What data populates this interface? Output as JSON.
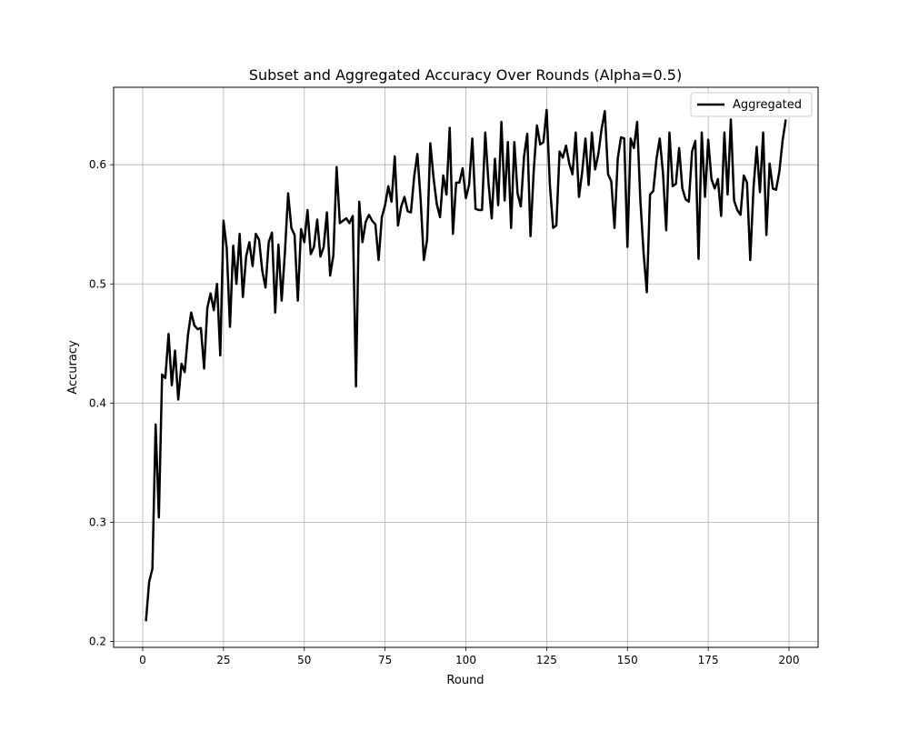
{
  "chart_data": {
    "type": "line",
    "title": "Subset and Aggregated Accuracy Over Rounds (Alpha=0.5)",
    "xlabel": "Round",
    "ylabel": "Accuracy",
    "xlim": [
      -9,
      209
    ],
    "ylim": [
      0.195,
      0.665
    ],
    "x_ticks": [
      0,
      25,
      50,
      75,
      100,
      125,
      150,
      175,
      200
    ],
    "y_ticks": [
      0.2,
      0.3,
      0.4,
      0.5,
      0.6
    ],
    "grid": true,
    "legend_position": "upper right",
    "series": [
      {
        "name": "Aggregated",
        "color": "#000000",
        "x": [
          1,
          2,
          3,
          4,
          5,
          6,
          7,
          8,
          9,
          10,
          11,
          12,
          13,
          14,
          15,
          16,
          17,
          18,
          19,
          20,
          21,
          22,
          23,
          24,
          25,
          26,
          27,
          28,
          29,
          30,
          31,
          32,
          33,
          34,
          35,
          36,
          37,
          38,
          39,
          40,
          41,
          42,
          43,
          44,
          45,
          46,
          47,
          48,
          49,
          50,
          51,
          52,
          53,
          54,
          55,
          56,
          57,
          58,
          59,
          60,
          61,
          62,
          63,
          64,
          65,
          66,
          67,
          68,
          69,
          70,
          71,
          72,
          73,
          74,
          75,
          76,
          77,
          78,
          79,
          80,
          81,
          82,
          83,
          84,
          85,
          86,
          87,
          88,
          89,
          90,
          91,
          92,
          93,
          94,
          95,
          96,
          97,
          98,
          99,
          100,
          101,
          102,
          103,
          104,
          105,
          106,
          107,
          108,
          109,
          110,
          111,
          112,
          113,
          114,
          115,
          116,
          117,
          118,
          119,
          120,
          121,
          122,
          123,
          124,
          125,
          126,
          127,
          128,
          129,
          130,
          131,
          132,
          133,
          134,
          135,
          136,
          137,
          138,
          139,
          140,
          141,
          142,
          143,
          144,
          145,
          146,
          147,
          148,
          149,
          150,
          151,
          152,
          153,
          154,
          155,
          156,
          157,
          158,
          159,
          160,
          161,
          162,
          163,
          164,
          165,
          166,
          167,
          168,
          169,
          170,
          171,
          172,
          173,
          174,
          175,
          176,
          177,
          178,
          179,
          180,
          181,
          182,
          183,
          184,
          185,
          186,
          187,
          188,
          189,
          190,
          191,
          192,
          193,
          194,
          195,
          196,
          197,
          198,
          199
        ],
        "values": [
          0.217,
          0.25,
          0.261,
          0.382,
          0.304,
          0.424,
          0.421,
          0.458,
          0.415,
          0.444,
          0.403,
          0.433,
          0.426,
          0.457,
          0.476,
          0.465,
          0.462,
          0.463,
          0.429,
          0.48,
          0.492,
          0.478,
          0.5,
          0.44,
          0.553,
          0.53,
          0.464,
          0.532,
          0.5,
          0.542,
          0.489,
          0.523,
          0.535,
          0.515,
          0.542,
          0.537,
          0.511,
          0.497,
          0.535,
          0.543,
          0.476,
          0.533,
          0.486,
          0.526,
          0.576,
          0.547,
          0.541,
          0.486,
          0.546,
          0.535,
          0.562,
          0.525,
          0.531,
          0.554,
          0.523,
          0.531,
          0.56,
          0.507,
          0.524,
          0.598,
          0.551,
          0.553,
          0.555,
          0.551,
          0.557,
          0.414,
          0.569,
          0.535,
          0.552,
          0.558,
          0.553,
          0.55,
          0.52,
          0.556,
          0.566,
          0.582,
          0.569,
          0.607,
          0.549,
          0.565,
          0.573,
          0.561,
          0.56,
          0.59,
          0.609,
          0.571,
          0.52,
          0.537,
          0.618,
          0.589,
          0.567,
          0.556,
          0.591,
          0.575,
          0.631,
          0.542,
          0.585,
          0.585,
          0.597,
          0.572,
          0.583,
          0.622,
          0.563,
          0.562,
          0.562,
          0.627,
          0.585,
          0.555,
          0.605,
          0.566,
          0.636,
          0.57,
          0.619,
          0.547,
          0.619,
          0.576,
          0.565,
          0.607,
          0.626,
          0.54,
          0.595,
          0.633,
          0.617,
          0.619,
          0.646,
          0.583,
          0.547,
          0.549,
          0.611,
          0.606,
          0.616,
          0.601,
          0.592,
          0.627,
          0.573,
          0.594,
          0.622,
          0.583,
          0.627,
          0.596,
          0.609,
          0.63,
          0.645,
          0.592,
          0.586,
          0.547,
          0.605,
          0.623,
          0.622,
          0.531,
          0.622,
          0.614,
          0.636,
          0.57,
          0.526,
          0.493,
          0.575,
          0.578,
          0.605,
          0.622,
          0.593,
          0.545,
          0.627,
          0.582,
          0.584,
          0.614,
          0.58,
          0.571,
          0.569,
          0.611,
          0.62,
          0.521,
          0.627,
          0.573,
          0.621,
          0.588,
          0.58,
          0.588,
          0.557,
          0.627,
          0.575,
          0.638,
          0.57,
          0.562,
          0.558,
          0.591,
          0.585,
          0.52,
          0.58,
          0.615,
          0.577,
          0.627,
          0.541,
          0.601,
          0.58,
          0.579,
          0.594,
          0.62,
          0.638
        ]
      }
    ]
  }
}
